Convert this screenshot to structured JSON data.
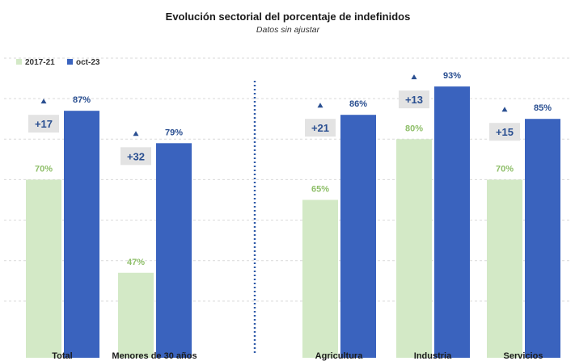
{
  "chart_data": {
    "type": "bar",
    "title": "Evolución sectorial del porcentaje de indefinidos",
    "subtitle": "Datos sin ajustar",
    "categories": [
      "Total",
      "Menores de 30 años",
      "Agricultura",
      "Industria",
      "Servicios"
    ],
    "series": [
      {
        "name": "2017-21",
        "values": [
          70,
          47,
          65,
          80,
          70
        ],
        "labels": [
          "70%",
          "47%",
          "65%",
          "80%",
          "70%"
        ]
      },
      {
        "name": "oct-23",
        "values": [
          87,
          79,
          86,
          93,
          85
        ],
        "labels": [
          "87%",
          "79%",
          "86%",
          "93%",
          "85%"
        ]
      }
    ],
    "deltas": [
      "+17",
      "+32",
      "+21",
      "+13",
      "+15"
    ],
    "ylim": [
      30,
      100
    ],
    "grid": true,
    "legend_position": "top-left",
    "colors": {
      "series_2017_21": "#d3e9c6",
      "series_oct_23": "#3a63be",
      "label_2017_21": "#8fbf6a",
      "label_oct_23": "#2a4f91",
      "delta_box": "#e3e3e3",
      "divider": "#2f5aa8",
      "grid": "#d9d9d9"
    }
  }
}
